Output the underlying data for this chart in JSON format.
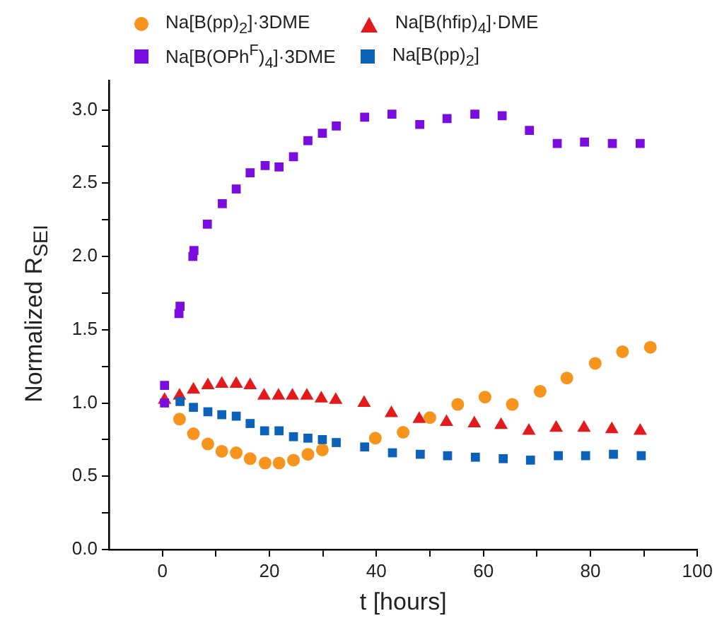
{
  "chart_data": {
    "type": "scatter",
    "xlabel": "t [hours]",
    "ylabel": "Normalized R$_{SEI}$",
    "xlim": [
      -10,
      100
    ],
    "ylim": [
      0,
      3.2
    ],
    "xticks": [
      0,
      {
        "value": 10,
        "label": null
      },
      20,
      {
        "value": 30,
        "label": null
      },
      40,
      {
        "value": 50,
        "label": null
      },
      60,
      {
        "value": 70,
        "label": null
      },
      80,
      {
        "value": 90,
        "label": null
      },
      100
    ],
    "yticks": [
      "0.0",
      {
        "value": 0.25,
        "label": null
      },
      {
        "value": 0.5,
        "label": "0.5"
      },
      {
        "value": 0.75,
        "label": null
      },
      {
        "value": 1,
        "label": "1.0"
      },
      {
        "value": 1.25,
        "label": null
      },
      {
        "value": 1.5,
        "label": "1.5"
      },
      {
        "value": 1.75,
        "label": null
      },
      {
        "value": 2,
        "label": "2.0"
      },
      {
        "value": 2.25,
        "label": null
      },
      {
        "value": 2.5,
        "label": "2.5"
      },
      {
        "value": 2.75,
        "label": null
      },
      {
        "value": 3,
        "label": "3.0"
      }
    ],
    "grid": false,
    "legend": "top",
    "series": [
      {
        "name": "Na[B(pp)$_{2}$]·3DME",
        "color": "#f7941d",
        "marker": "circle",
        "x": [
          3.2,
          5.8,
          8.5,
          11.1,
          13.8,
          16.4,
          19.2,
          21.8,
          24.5,
          27.2,
          29.9,
          39.8,
          45.0,
          50.0,
          55.2,
          60.3,
          65.4,
          70.6,
          75.6,
          80.9,
          86.0,
          91.2
        ],
        "values": [
          0.89,
          0.79,
          0.72,
          0.67,
          0.66,
          0.62,
          0.59,
          0.59,
          0.61,
          0.65,
          0.68,
          0.76,
          0.8,
          0.9,
          0.99,
          1.04,
          0.99,
          1.08,
          1.17,
          1.27,
          1.35,
          1.38
        ]
      },
      {
        "name": "Na[B(hfip)$_{4}$]·DME",
        "color": "#e31a1c",
        "marker": "triangle",
        "x": [
          0.4,
          3.2,
          5.8,
          8.5,
          11.1,
          13.8,
          16.4,
          19.0,
          21.7,
          24.3,
          27.0,
          29.7,
          32.4,
          37.7,
          42.8,
          48.0,
          53.1,
          58.3,
          63.3,
          68.5,
          73.6,
          78.8,
          84.0,
          89.3
        ],
        "values": [
          1.02,
          1.05,
          1.09,
          1.12,
          1.13,
          1.13,
          1.12,
          1.05,
          1.05,
          1.05,
          1.05,
          1.03,
          1.02,
          1.0,
          0.93,
          0.89,
          0.87,
          0.86,
          0.85,
          0.81,
          0.83,
          0.83,
          0.82,
          0.81
        ]
      },
      {
        "name": "Na[B(OPh$^{F}$)$_{4}$]·3DME",
        "color": "#7a0ce0",
        "marker": "square",
        "x": [
          0.4,
          0.4,
          3.1,
          3.3,
          5.7,
          5.9,
          8.4,
          11.2,
          13.8,
          16.4,
          19.2,
          21.8,
          24.5,
          27.2,
          29.9,
          32.5,
          37.8,
          42.9,
          48.1,
          53.2,
          58.4,
          63.5,
          68.6,
          73.8,
          78.9,
          84.1,
          89.3
        ],
        "values": [
          1.0,
          1.12,
          1.61,
          1.66,
          2.0,
          2.04,
          2.22,
          2.36,
          2.46,
          2.57,
          2.62,
          2.61,
          2.68,
          2.79,
          2.84,
          2.89,
          2.95,
          2.97,
          2.9,
          2.94,
          2.97,
          2.96,
          2.86,
          2.77,
          2.78,
          2.77,
          2.77
        ]
      },
      {
        "name": "Na[B(pp)$_{2}$]",
        "color": "#0b62b8",
        "marker": "square",
        "x": [
          3.3,
          5.8,
          8.5,
          11.1,
          13.8,
          16.4,
          19.1,
          21.8,
          24.5,
          27.2,
          29.9,
          32.5,
          37.8,
          43.0,
          48.2,
          53.3,
          58.5,
          63.7,
          68.8,
          74.0,
          79.1,
          84.3,
          89.5
        ],
        "values": [
          1.01,
          0.97,
          0.94,
          0.92,
          0.91,
          0.86,
          0.81,
          0.81,
          0.77,
          0.76,
          0.75,
          0.73,
          0.7,
          0.66,
          0.65,
          0.64,
          0.63,
          0.62,
          0.61,
          0.64,
          0.64,
          0.65,
          0.64
        ]
      }
    ]
  }
}
